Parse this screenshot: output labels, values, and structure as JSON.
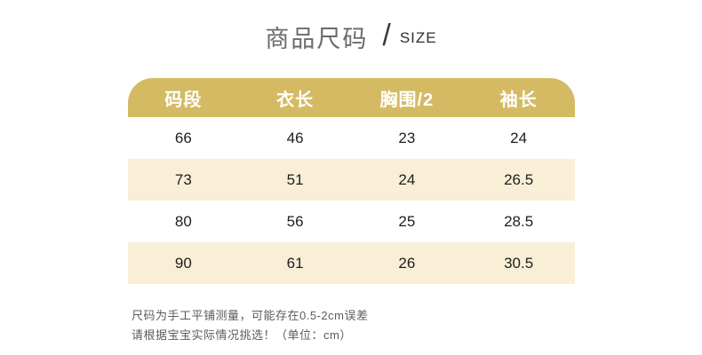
{
  "title": {
    "zh": "商品尺码",
    "divider": "/",
    "en": "SIZE"
  },
  "colors": {
    "header_bg": "#d4bb63",
    "stripe_bg": "#f8efd6",
    "header_text": "#ffffff",
    "title_zh_text": "#6a6a6a",
    "body_text": "#1e1e1e",
    "note_text": "#5c5c5c"
  },
  "chart_data": {
    "type": "table",
    "title": "商品尺码 / SIZE",
    "columns": [
      "码段",
      "衣长",
      "胸围/2",
      "袖长"
    ],
    "rows": [
      [
        "66",
        "46",
        "23",
        "24"
      ],
      [
        "73",
        "51",
        "24",
        "26.5"
      ],
      [
        "80",
        "56",
        "25",
        "28.5"
      ],
      [
        "90",
        "61",
        "26",
        "30.5"
      ]
    ],
    "unit": "cm",
    "layout": "header-gold-rounded-top, zebra stripes cream/white, values centered in 4 equal columns"
  },
  "notes": {
    "line1": "尺码为手工平铺测量，可能存在0.5-2cm误差",
    "line2": "请根据宝宝实际情况挑选！（单位：cm）"
  }
}
